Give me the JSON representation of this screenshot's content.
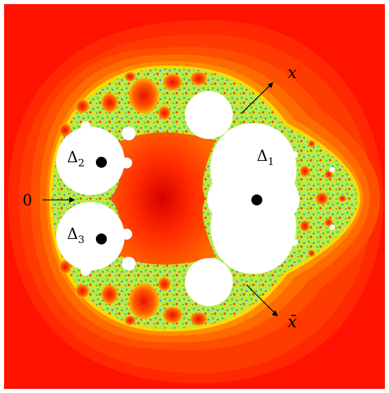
{
  "figure": {
    "labels": {
      "delta1": {
        "base": "Δ",
        "sub": "1"
      },
      "delta2": {
        "base": "Δ",
        "sub": "2"
      },
      "delta3": {
        "base": "Δ",
        "sub": "3"
      },
      "zero": "0",
      "x": "x",
      "xbar": "x̄"
    },
    "colors": {
      "background": "#ffffff",
      "outer_red": "#ff1a00",
      "orange": "#ff5a00",
      "orange_light": "#ff8c00",
      "yellow": "#ffd800",
      "lime": "#c8ee40",
      "green": "#46d84a",
      "blue_noise": "#2f7cff",
      "center_red": "#e00000",
      "disk_white": "#ffffff",
      "dot_black": "#000000"
    }
  }
}
